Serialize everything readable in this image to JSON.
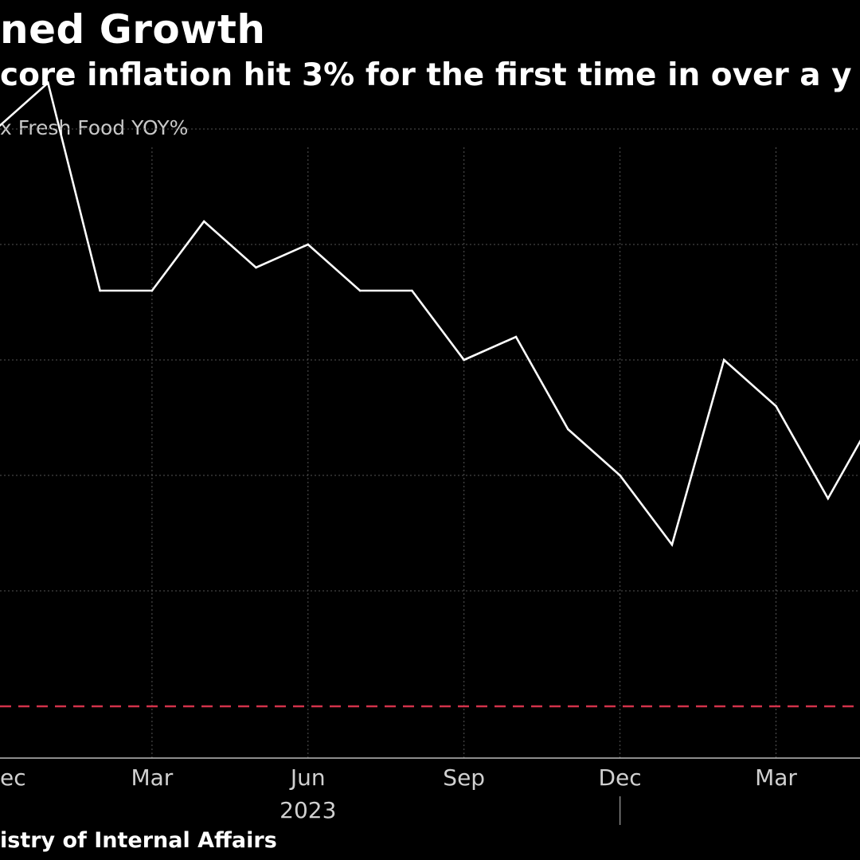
{
  "title": "ned Growth",
  "subtitle": "core inflation hit 3% for the first time in over a y",
  "series_label": "x Fresh Food YOY%",
  "source": "istry of Internal Affairs",
  "colors": {
    "background": "#000000",
    "line": "#ffffff",
    "grid": "#555555",
    "reference": "#d2324b"
  },
  "chart_data": {
    "type": "line",
    "title": "ned Growth",
    "subtitle": "core inflation hit 3% for the first time in over a y",
    "ylabel": "x Fresh Food YOY%",
    "x_ticks": [
      "ec",
      "Mar",
      "Jun",
      "Sep",
      "Dec",
      "Mar"
    ],
    "x_tick_months": [
      0,
      3,
      6,
      9,
      12,
      15
    ],
    "year_label": "2023",
    "y_grid_values": [
      1.5,
      2.0,
      2.5,
      3.0,
      3.5,
      4.0
    ],
    "ylim": [
      1.3,
      4.3
    ],
    "reference_line": 1.5,
    "series": [
      {
        "name": "Core CPI ex Fresh Food YOY%",
        "x": [
          0,
          1,
          2,
          3,
          4,
          5,
          6,
          7,
          8,
          9,
          10,
          11,
          12,
          13,
          14,
          15,
          16,
          17
        ],
        "values": [
          4.0,
          4.2,
          3.3,
          3.3,
          3.6,
          3.4,
          3.5,
          3.3,
          3.3,
          3.0,
          3.1,
          2.7,
          2.5,
          2.2,
          3.0,
          2.8,
          2.4,
          2.8
        ]
      }
    ]
  }
}
